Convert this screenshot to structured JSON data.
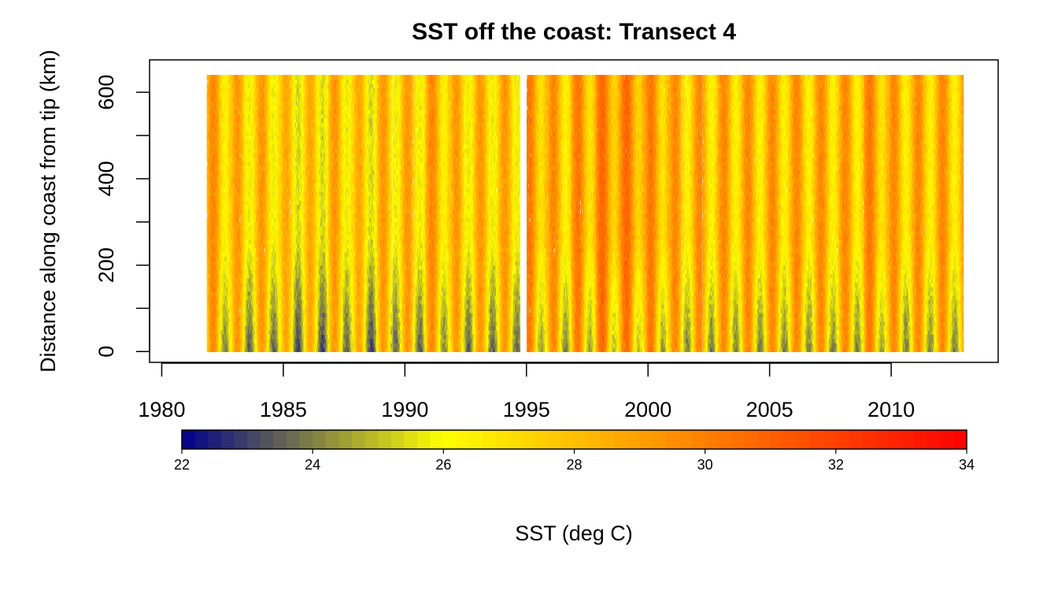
{
  "chart_data": {
    "type": "heatmap",
    "title": "SST off the coast: Transect 4",
    "xlabel": "",
    "ylabel": "Distance along coast from tip (km)",
    "xlim": [
      1979.5,
      2014.4
    ],
    "ylim": [
      -25,
      675
    ],
    "x_ticks": [
      "1980",
      "1985",
      "1990",
      "1995",
      "2000",
      "2005",
      "2010"
    ],
    "y_ticks": [
      "0",
      "200",
      "400",
      "600"
    ],
    "x_range": [
      1981.85,
      2012.95
    ],
    "y_range": [
      0,
      640
    ],
    "data_gap": [
      1994.7,
      1995.0
    ],
    "summer_bands_dominant_sst": [
      29,
      28.5,
      28.5,
      28,
      28,
      28.5,
      28,
      28.5,
      28.5,
      29,
      28.5,
      28.5,
      28.5,
      29.5,
      29,
      29.5,
      30,
      30,
      29.5,
      29,
      29,
      29,
      29,
      29,
      29,
      29,
      29,
      29.5,
      29,
      29,
      29
    ],
    "colorbar": {
      "label": "SST (deg C)",
      "range": [
        22,
        34
      ],
      "ticks": [
        "22",
        "24",
        "26",
        "28",
        "30",
        "32",
        "34"
      ],
      "colors": [
        "#00008b",
        "#ffff00",
        "#ff0000"
      ],
      "mid_value": 26,
      "n_steps": 60
    }
  }
}
